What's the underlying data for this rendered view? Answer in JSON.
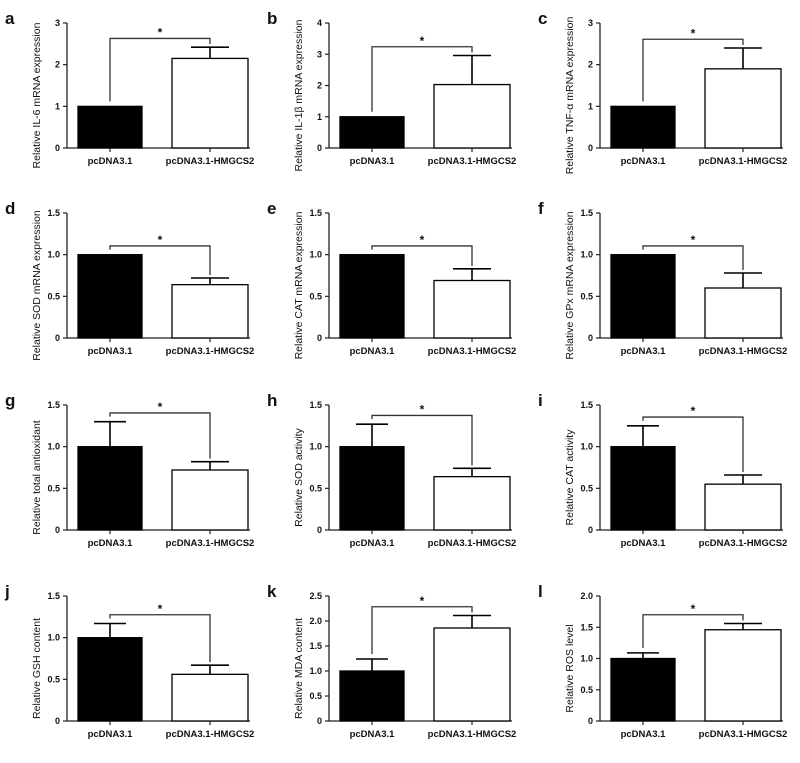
{
  "chart_data": [
    {
      "panel": "a",
      "type": "bar",
      "categories": [
        "pcDNA3.1",
        "pcDNA3.1-HMGCS2"
      ],
      "values": [
        1,
        2.15
      ],
      "errors": [
        0,
        0.27
      ],
      "ylabel": "Relative IL-6 mRNA expression",
      "ylim": [
        0,
        3
      ],
      "yticks": [
        "0",
        "1",
        "2",
        "3"
      ],
      "significance": "*",
      "colors": [
        "#000000",
        "#ffffff"
      ]
    },
    {
      "panel": "b",
      "type": "bar",
      "categories": [
        "pcDNA3.1",
        "pcDNA3.1-HMGCS2"
      ],
      "values": [
        1,
        2.03
      ],
      "errors": [
        0,
        0.93
      ],
      "ylabel": "Relative IL-1β mRNA expression",
      "ylim": [
        0,
        4
      ],
      "yticks": [
        "0",
        "1",
        "2",
        "3",
        "4"
      ],
      "significance": "*",
      "colors": [
        "#000000",
        "#ffffff"
      ]
    },
    {
      "panel": "c",
      "type": "bar",
      "categories": [
        "pcDNA3.1",
        "pcDNA3.1-HMGCS2"
      ],
      "values": [
        1,
        1.9
      ],
      "errors": [
        0,
        0.5
      ],
      "ylabel": "Relative TNF-α mRNA expression",
      "ylim": [
        0,
        3
      ],
      "yticks": [
        "0",
        "1",
        "2",
        "3"
      ],
      "significance": "*",
      "colors": [
        "#000000",
        "#ffffff"
      ]
    },
    {
      "panel": "d",
      "type": "bar",
      "categories": [
        "pcDNA3.1",
        "pcDNA3.1-HMGCS2"
      ],
      "values": [
        1,
        0.64
      ],
      "errors": [
        0,
        0.08
      ],
      "ylabel": "Relative SOD mRNA expression",
      "ylim": [
        0,
        1.5
      ],
      "yticks": [
        "0",
        "0.5",
        "1.0",
        "1.5"
      ],
      "significance": "*",
      "colors": [
        "#000000",
        "#ffffff"
      ]
    },
    {
      "panel": "e",
      "type": "bar",
      "categories": [
        "pcDNA3.1",
        "pcDNA3.1-HMGCS2"
      ],
      "values": [
        1,
        0.69
      ],
      "errors": [
        0,
        0.14
      ],
      "ylabel": "Relative CAT mRNA expression",
      "ylim": [
        0,
        1.5
      ],
      "yticks": [
        "0",
        "0.5",
        "1.0",
        "1.5"
      ],
      "significance": "*",
      "colors": [
        "#000000",
        "#ffffff"
      ]
    },
    {
      "panel": "f",
      "type": "bar",
      "categories": [
        "pcDNA3.1",
        "pcDNA3.1-HMGCS2"
      ],
      "values": [
        1,
        0.6
      ],
      "errors": [
        0,
        0.18
      ],
      "ylabel": "Relative GPx mRNA expression",
      "ylim": [
        0,
        1.5
      ],
      "yticks": [
        "0",
        "0.5",
        "1.0",
        "1.5"
      ],
      "significance": "*",
      "colors": [
        "#000000",
        "#ffffff"
      ]
    },
    {
      "panel": "g",
      "type": "bar",
      "categories": [
        "pcDNA3.1",
        "pcDNA3.1-HMGCS2"
      ],
      "values": [
        1,
        0.72
      ],
      "errors": [
        0.3,
        0.1
      ],
      "ylabel": "Relative total antioxidant",
      "ylim": [
        0,
        1.5
      ],
      "yticks": [
        "0",
        "0.5",
        "1.0",
        "1.5"
      ],
      "significance": "*",
      "colors": [
        "#000000",
        "#ffffff"
      ]
    },
    {
      "panel": "h",
      "type": "bar",
      "categories": [
        "pcDNA3.1",
        "pcDNA3.1-HMGCS2"
      ],
      "values": [
        1,
        0.64
      ],
      "errors": [
        0.27,
        0.1
      ],
      "ylabel": "Relative SOD activity",
      "ylim": [
        0,
        1.5
      ],
      "yticks": [
        "0",
        "0.5",
        "1.0",
        "1.5"
      ],
      "significance": "*",
      "colors": [
        "#000000",
        "#ffffff"
      ]
    },
    {
      "panel": "i",
      "type": "bar",
      "categories": [
        "pcDNA3.1",
        "pcDNA3.1-HMGCS2"
      ],
      "values": [
        1,
        0.55
      ],
      "errors": [
        0.25,
        0.11
      ],
      "ylabel": "Relative CAT activity",
      "ylim": [
        0,
        1.5
      ],
      "yticks": [
        "0",
        "0.5",
        "1.0",
        "1.5"
      ],
      "significance": "*",
      "colors": [
        "#000000",
        "#ffffff"
      ]
    },
    {
      "panel": "j",
      "type": "bar",
      "categories": [
        "pcDNA3.1",
        "pcDNA3.1-HMGCS2"
      ],
      "values": [
        1,
        0.56
      ],
      "errors": [
        0.17,
        0.11
      ],
      "ylabel": "Relative GSH content",
      "ylim": [
        0,
        1.5
      ],
      "yticks": [
        "0",
        "0.5",
        "1.0",
        "1.5"
      ],
      "significance": "*",
      "colors": [
        "#000000",
        "#ffffff"
      ]
    },
    {
      "panel": "k",
      "type": "bar",
      "categories": [
        "pcDNA3.1",
        "pcDNA3.1-HMGCS2"
      ],
      "values": [
        1,
        1.86
      ],
      "errors": [
        0.24,
        0.25
      ],
      "ylabel": "Relative MDA content",
      "ylim": [
        0,
        2.5
      ],
      "yticks": [
        "0",
        "0.5",
        "1.0",
        "1.5",
        "2.0",
        "2.5"
      ],
      "significance": "*",
      "colors": [
        "#000000",
        "#ffffff"
      ]
    },
    {
      "panel": "l",
      "type": "bar",
      "categories": [
        "pcDNA3.1",
        "pcDNA3.1-HMGCS2"
      ],
      "values": [
        1,
        1.46
      ],
      "errors": [
        0.09,
        0.1
      ],
      "ylabel": "Relative ROS level",
      "ylim": [
        0,
        2.0
      ],
      "yticks": [
        "0",
        "0.5",
        "1.0",
        "1.5",
        "2.0"
      ],
      "significance": "*",
      "colors": [
        "#000000",
        "#ffffff"
      ]
    }
  ]
}
